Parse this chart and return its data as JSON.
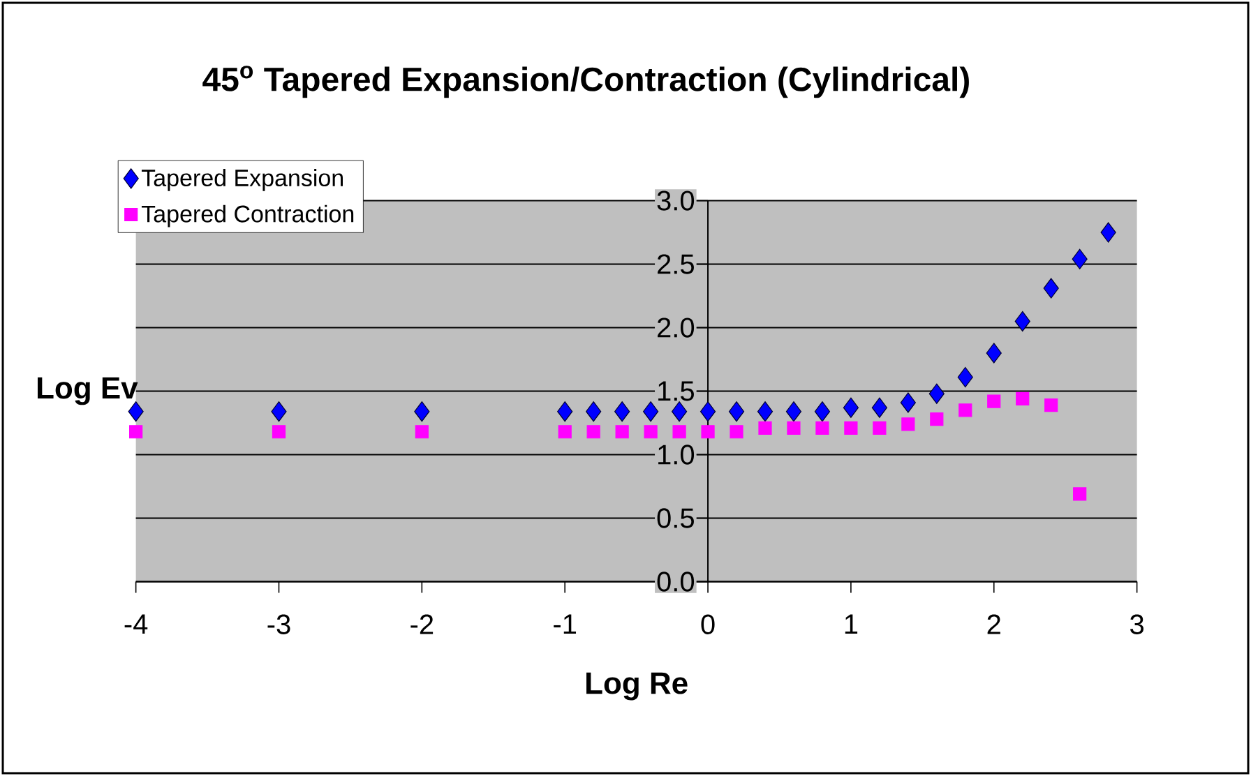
{
  "chart_data": {
    "type": "scatter",
    "title": "45$^{o}$ Tapered Expansion/Contraction (Cylindrical)",
    "xlabel": "Log Re",
    "ylabel": "Log Ev",
    "series": [
      {
        "name": "Tapered Expansion",
        "color": "#0000ff",
        "marker": "diamond",
        "x": [
          -4,
          -3,
          -2,
          -1,
          -0.8,
          -0.6,
          -0.4,
          -0.2,
          0,
          0.2,
          0.4,
          0.6,
          0.8,
          1.0,
          1.2,
          1.4,
          1.6,
          1.8,
          2.0,
          2.2,
          2.4,
          2.6,
          2.8
        ],
        "values": [
          1.34,
          1.34,
          1.34,
          1.34,
          1.34,
          1.34,
          1.34,
          1.34,
          1.34,
          1.34,
          1.34,
          1.34,
          1.34,
          1.37,
          1.37,
          1.41,
          1.48,
          1.61,
          1.8,
          2.05,
          2.31,
          2.54,
          2.75
        ]
      },
      {
        "name": "Tapered Contraction",
        "color": "#ff00ff",
        "marker": "square",
        "x": [
          -4,
          -3,
          -2,
          -1,
          -0.8,
          -0.6,
          -0.4,
          -0.2,
          0,
          0.2,
          0.4,
          0.6,
          0.8,
          1.0,
          1.2,
          1.4,
          1.6,
          1.8,
          2.0,
          2.2,
          2.4,
          2.6
        ],
        "values": [
          1.18,
          1.18,
          1.18,
          1.18,
          1.18,
          1.18,
          1.18,
          1.18,
          1.18,
          1.18,
          1.21,
          1.21,
          1.21,
          1.21,
          1.21,
          1.24,
          1.28,
          1.35,
          1.42,
          1.44,
          1.39,
          0.69
        ]
      }
    ],
    "xlim": [
      -4,
      3
    ],
    "ylim": [
      0,
      3
    ],
    "xticks": [
      -4,
      -3,
      -2,
      -1,
      0,
      1,
      2,
      3
    ],
    "yticks": [
      {
        "value": 0,
        "label": "0.0"
      },
      {
        "value": 0.5,
        "label": "0.5"
      },
      {
        "value": 1,
        "label": "1.0"
      },
      {
        "value": 1.5,
        "label": "1.5"
      },
      {
        "value": 2,
        "label": "2.0"
      },
      {
        "value": 2.5,
        "label": "2.5"
      },
      {
        "value": 3,
        "label": "3.0"
      }
    ],
    "grid": "y",
    "legend": "top left"
  }
}
